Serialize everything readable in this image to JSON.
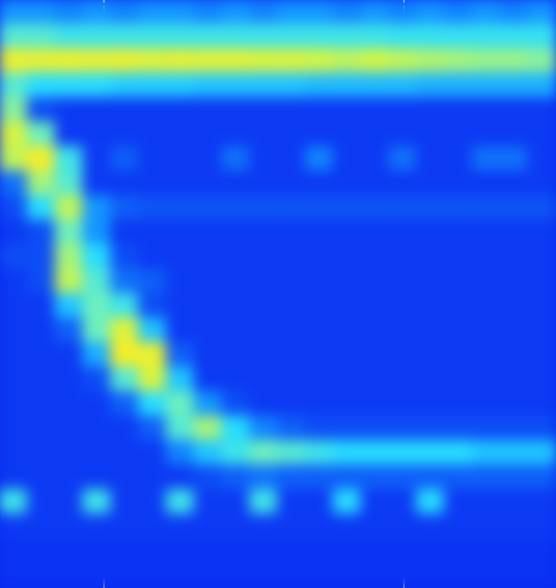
{
  "chart_data": {
    "type": "heatmap",
    "tick_labels": false,
    "grid": false,
    "xlim": [
      0,
      20
    ],
    "ylim": [
      0,
      24
    ],
    "color_range": [
      0,
      1
    ],
    "vlines": [
      3.74,
      14.53
    ],
    "cells": [
      [
        0.3,
        0.3,
        0.25,
        0.3,
        0.25,
        0.3,
        0.3,
        0.25,
        0.3,
        0.25,
        0.3,
        0.3,
        0.25,
        0.3,
        0.25,
        0.3,
        0.25,
        0.3,
        0.25,
        0.3
      ],
      [
        0.55,
        0.55,
        0.5,
        0.5,
        0.5,
        0.5,
        0.5,
        0.5,
        0.5,
        0.5,
        0.5,
        0.5,
        0.5,
        0.5,
        0.48,
        0.48,
        0.48,
        0.48,
        0.48,
        0.48
      ],
      [
        0.9,
        0.88,
        0.9,
        0.88,
        0.9,
        0.85,
        0.88,
        0.85,
        0.85,
        0.82,
        0.82,
        0.78,
        0.75,
        0.78,
        0.75,
        0.72,
        0.7,
        0.68,
        0.68,
        0.65
      ],
      [
        0.55,
        0.45,
        0.45,
        0.45,
        0.42,
        0.42,
        0.42,
        0.4,
        0.4,
        0.4,
        0.4,
        0.38,
        0.38,
        0.38,
        0.38,
        0.36,
        0.36,
        0.36,
        0.36,
        0.36
      ],
      [
        0.65,
        0.1,
        0.05,
        0.05,
        0.05,
        0.05,
        0.05,
        0.05,
        0.05,
        0.05,
        0.05,
        0.05,
        0.05,
        0.05,
        0.05,
        0.05,
        0.05,
        0.05,
        0.05,
        0.05
      ],
      [
        0.8,
        0.6,
        0.05,
        0.05,
        0.05,
        0.05,
        0.05,
        0.05,
        0.05,
        0.05,
        0.05,
        0.05,
        0.05,
        0.05,
        0.05,
        0.05,
        0.05,
        0.05,
        0.05,
        0.05
      ],
      [
        0.75,
        0.95,
        0.5,
        0.05,
        0.15,
        0.05,
        0.05,
        0.05,
        0.2,
        0.05,
        0.05,
        0.25,
        0.05,
        0.05,
        0.2,
        0.05,
        0.05,
        0.2,
        0.2,
        0.05
      ],
      [
        0.2,
        0.7,
        0.55,
        0.05,
        0.05,
        0.05,
        0.05,
        0.05,
        0.05,
        0.05,
        0.05,
        0.05,
        0.05,
        0.05,
        0.05,
        0.05,
        0.05,
        0.05,
        0.05,
        0.05
      ],
      [
        0.1,
        0.45,
        0.75,
        0.3,
        0.15,
        0.12,
        0.12,
        0.12,
        0.12,
        0.12,
        0.12,
        0.12,
        0.12,
        0.12,
        0.12,
        0.12,
        0.12,
        0.12,
        0.12,
        0.12
      ],
      [
        0.05,
        0.1,
        0.6,
        0.3,
        0.05,
        0.05,
        0.05,
        0.05,
        0.05,
        0.05,
        0.05,
        0.05,
        0.05,
        0.05,
        0.05,
        0.05,
        0.05,
        0.05,
        0.05,
        0.05
      ],
      [
        0.1,
        0.1,
        0.7,
        0.45,
        0.1,
        0.05,
        0.05,
        0.05,
        0.05,
        0.05,
        0.05,
        0.05,
        0.05,
        0.05,
        0.05,
        0.05,
        0.05,
        0.05,
        0.05,
        0.05
      ],
      [
        0.05,
        0.1,
        0.75,
        0.55,
        0.2,
        0.15,
        0.05,
        0.05,
        0.05,
        0.05,
        0.05,
        0.05,
        0.05,
        0.05,
        0.05,
        0.05,
        0.05,
        0.05,
        0.05,
        0.05
      ],
      [
        0.05,
        0.05,
        0.4,
        0.6,
        0.5,
        0.1,
        0.05,
        0.05,
        0.05,
        0.05,
        0.05,
        0.05,
        0.05,
        0.05,
        0.05,
        0.05,
        0.05,
        0.05,
        0.05,
        0.05
      ],
      [
        0.05,
        0.05,
        0.15,
        0.6,
        0.85,
        0.4,
        0.05,
        0.05,
        0.05,
        0.05,
        0.05,
        0.05,
        0.05,
        0.05,
        0.05,
        0.05,
        0.05,
        0.05,
        0.05,
        0.05
      ],
      [
        0.05,
        0.05,
        0.05,
        0.35,
        0.95,
        0.9,
        0.15,
        0.05,
        0.05,
        0.05,
        0.05,
        0.05,
        0.05,
        0.05,
        0.05,
        0.05,
        0.05,
        0.05,
        0.05,
        0.05
      ],
      [
        0.05,
        0.05,
        0.05,
        0.1,
        0.55,
        0.8,
        0.4,
        0.05,
        0.05,
        0.05,
        0.05,
        0.05,
        0.05,
        0.05,
        0.05,
        0.05,
        0.05,
        0.05,
        0.05,
        0.05
      ],
      [
        0.05,
        0.05,
        0.05,
        0.05,
        0.15,
        0.45,
        0.6,
        0.3,
        0.1,
        0.05,
        0.05,
        0.05,
        0.05,
        0.05,
        0.05,
        0.05,
        0.05,
        0.05,
        0.05,
        0.05
      ],
      [
        0.05,
        0.05,
        0.05,
        0.05,
        0.05,
        0.15,
        0.55,
        0.7,
        0.45,
        0.25,
        0.15,
        0.1,
        0.1,
        0.1,
        0.1,
        0.1,
        0.1,
        0.1,
        0.1,
        0.1
      ],
      [
        0.05,
        0.05,
        0.05,
        0.05,
        0.05,
        0.05,
        0.25,
        0.4,
        0.5,
        0.6,
        0.55,
        0.5,
        0.45,
        0.45,
        0.45,
        0.45,
        0.45,
        0.4,
        0.4,
        0.4
      ],
      [
        0.05,
        0.05,
        0.05,
        0.05,
        0.05,
        0.05,
        0.05,
        0.1,
        0.15,
        0.2,
        0.15,
        0.15,
        0.15,
        0.15,
        0.15,
        0.15,
        0.15,
        0.15,
        0.15,
        0.15
      ],
      [
        0.5,
        0.05,
        0.05,
        0.5,
        0.05,
        0.05,
        0.5,
        0.05,
        0.05,
        0.5,
        0.05,
        0.05,
        0.45,
        0.05,
        0.05,
        0.45,
        0.05,
        0.05,
        0.05,
        0.05
      ],
      [
        0.05,
        0.05,
        0.05,
        0.05,
        0.05,
        0.05,
        0.05,
        0.05,
        0.05,
        0.05,
        0.05,
        0.05,
        0.05,
        0.05,
        0.05,
        0.05,
        0.05,
        0.05,
        0.05,
        0.05
      ],
      [
        0.03,
        0.03,
        0.03,
        0.03,
        0.03,
        0.03,
        0.03,
        0.03,
        0.03,
        0.03,
        0.03,
        0.03,
        0.03,
        0.03,
        0.03,
        0.03,
        0.03,
        0.03,
        0.03,
        0.03
      ],
      [
        0.03,
        0.03,
        0.03,
        0.03,
        0.03,
        0.03,
        0.03,
        0.03,
        0.03,
        0.03,
        0.03,
        0.03,
        0.03,
        0.03,
        0.03,
        0.03,
        0.03,
        0.03,
        0.03,
        0.03
      ]
    ]
  }
}
